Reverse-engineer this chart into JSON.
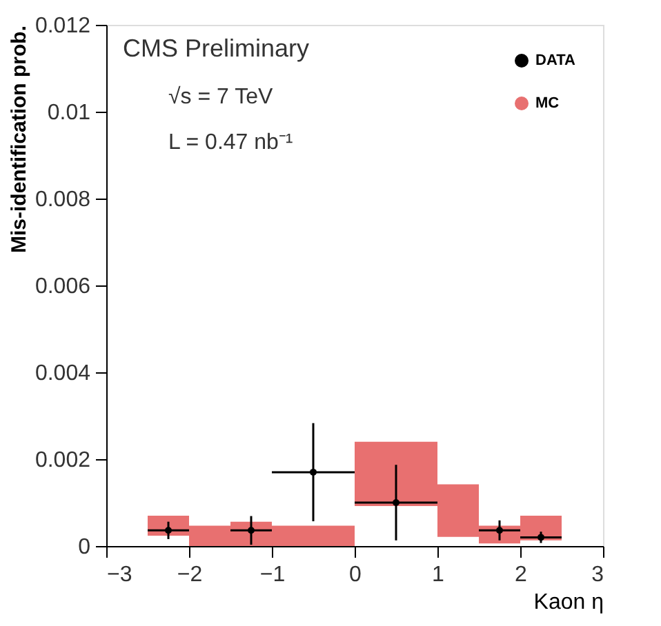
{
  "chart_data": {
    "type": "scatter",
    "xlabel": "Kaon η",
    "ylabel": "Mis-identification prob.",
    "annotations": [
      "CMS Preliminary",
      "√s = 7 TeV",
      "L = 0.47 nb⁻¹"
    ],
    "xlim": [
      -3,
      3
    ],
    "xticks": [
      -3,
      -2,
      -1,
      0,
      1,
      2,
      3
    ],
    "ylim": [
      0,
      0.012
    ],
    "yticks": [
      0,
      0.002,
      0.004,
      0.006,
      0.008,
      0.01,
      0.012
    ],
    "grid": false,
    "legend": "top right",
    "series": [
      {
        "name": "DATA",
        "color": "#000000",
        "marker": "circle",
        "x": [
          -2.25,
          -1.25,
          -0.5,
          0.5,
          1.75,
          2.25
        ],
        "values": [
          0.00036,
          0.00036,
          0.0017,
          0.001,
          0.00036,
          0.0002
        ],
        "errors": [
          0.0002,
          0.00033,
          0.00113,
          0.00087,
          0.00023,
          0.00013
        ],
        "xerrors": [
          0.25,
          0.25,
          0.5,
          0.5,
          0.25,
          0.25
        ]
      },
      {
        "name": "MC",
        "type": "histogram",
        "color": "#e87070",
        "bins": [
          -2.5,
          -2,
          -1.5,
          -1,
          0,
          1,
          1.5,
          2,
          2.5
        ],
        "base": [
          0.00024,
          0,
          0,
          0,
          0.00092,
          0.00021,
          6e-05,
          0.00013
        ],
        "values": [
          0.00046,
          0.00047,
          0.00056,
          0.00047,
          0.00148,
          0.00121,
          0.00041,
          0.00057
        ]
      }
    ]
  }
}
